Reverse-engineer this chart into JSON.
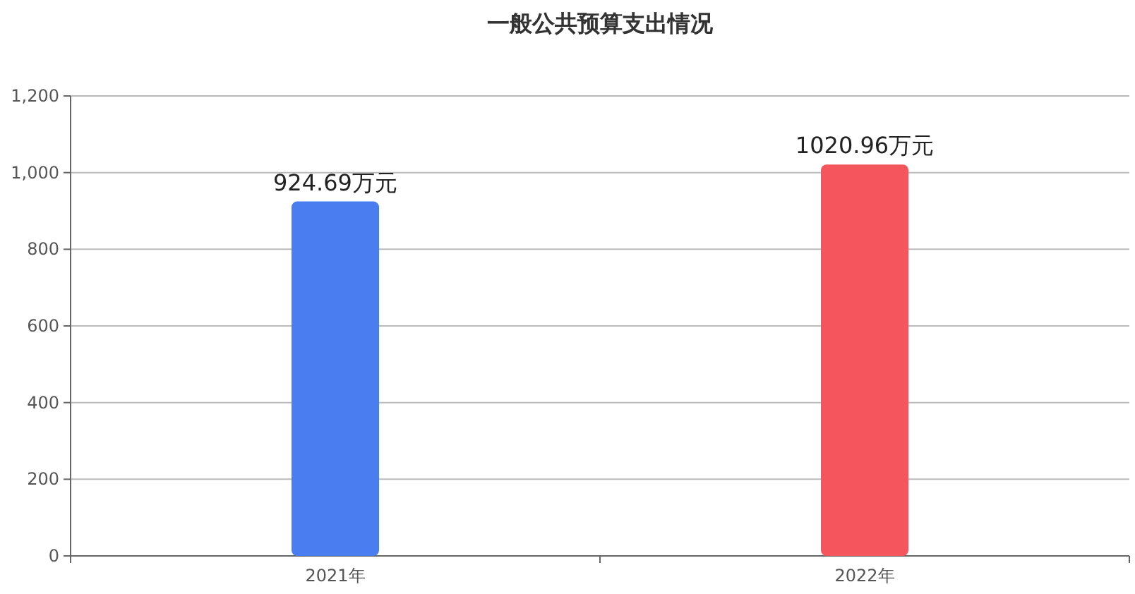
{
  "chart_data": {
    "type": "bar",
    "title": "一般公共预算支出情况",
    "categories": [
      "2021年",
      "2022年"
    ],
    "values": [
      924.69,
      1020.96
    ],
    "colors": [
      "#4a7ef0",
      "#f5555d"
    ],
    "value_labels": [
      "924.69万元",
      "1020.96万元"
    ],
    "ylim": [
      0,
      1200
    ],
    "yticks": [
      0,
      200,
      400,
      600,
      800,
      {
        "value": 1000,
        "label": "1,000"
      },
      {
        "value": 1200,
        "label": "1,200"
      }
    ],
    "grid": "y"
  }
}
